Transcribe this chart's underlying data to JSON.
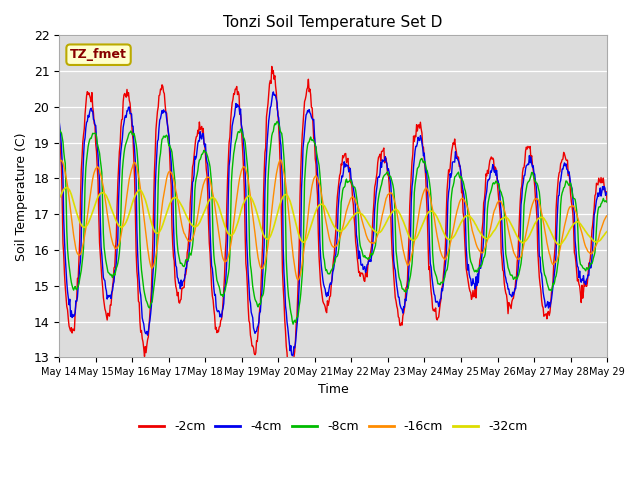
{
  "title": "Tonzi Soil Temperature Set D",
  "xlabel": "Time",
  "ylabel": "Soil Temperature (C)",
  "ylim": [
    13.0,
    22.0
  ],
  "yticks": [
    13.0,
    14.0,
    15.0,
    16.0,
    17.0,
    18.0,
    19.0,
    20.0,
    21.0,
    22.0
  ],
  "n_days": 15,
  "xtick_labels": [
    "May 14",
    "May 15",
    "May 16",
    "May 17",
    "May 18",
    "May 19",
    "May 20",
    "May 21",
    "May 22",
    "May 23",
    "May 24",
    "May 25",
    "May 26",
    "May 27",
    "May 28",
    "May 29"
  ],
  "colors": {
    "-2cm": "#EE0000",
    "-4cm": "#0000EE",
    "-8cm": "#00BB00",
    "-16cm": "#FF8C00",
    "-32cm": "#DDDD00"
  },
  "legend_label": "TZ_fmet",
  "bg_color": "#DCDCDC",
  "fig_bg": "#FFFFFF",
  "grid_color": "#FFFFFF",
  "spine_color": "#AAAAAA",
  "label_box_fc": "#FFFFCC",
  "label_box_ec": "#BBAA00",
  "label_text_color": "#880000"
}
